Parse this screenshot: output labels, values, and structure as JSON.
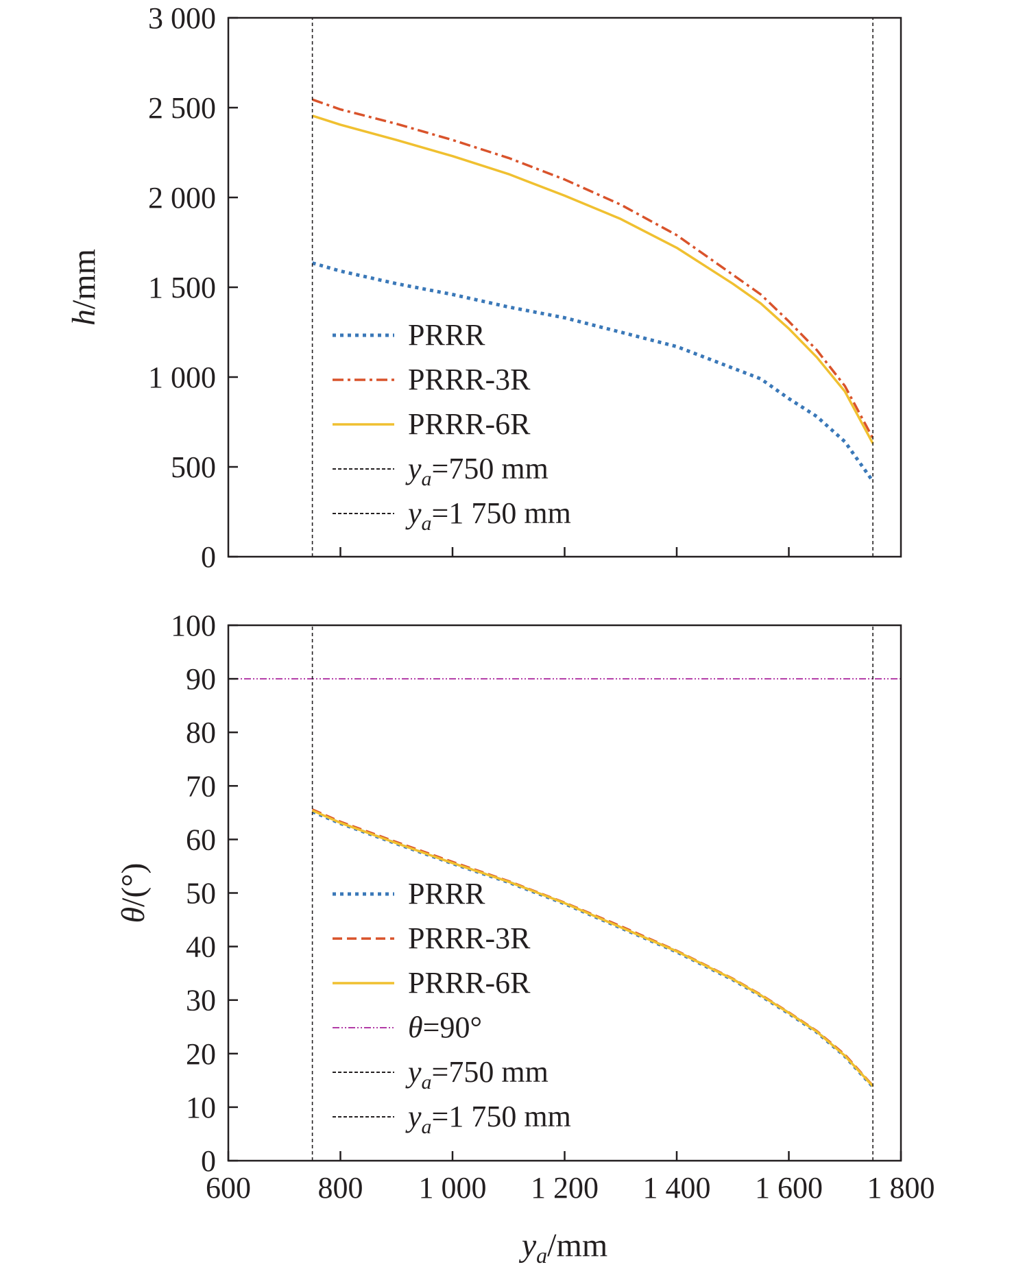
{
  "chart_data": [
    {
      "type": "line",
      "ylabel": {
        "var": "h",
        "unit": "/mm"
      },
      "xlim": [
        600,
        1800
      ],
      "ylim": [
        0,
        3000
      ],
      "yticks": [
        0,
        500,
        1000,
        1500,
        2000,
        2500,
        3000
      ],
      "ytick_labels": [
        "0",
        "500",
        "1 000",
        "1 500",
        "2 000",
        "2 500",
        "3 000"
      ],
      "xticks": [
        800,
        1000,
        1200,
        1400,
        1600
      ],
      "grid": false,
      "legend_position": "bottom-left",
      "series": [
        {
          "name": "PRRR",
          "style": "dotted",
          "color": "#3a78b8",
          "x": [
            750,
            800,
            900,
            1000,
            1100,
            1200,
            1300,
            1400,
            1500,
            1550,
            1600,
            1650,
            1700,
            1750
          ],
          "y": [
            1635,
            1590,
            1520,
            1460,
            1390,
            1330,
            1250,
            1170,
            1050,
            990,
            880,
            780,
            640,
            420
          ]
        },
        {
          "name": "PRRR-3R",
          "style": "dashdot",
          "color": "#d9532b",
          "x": [
            750,
            800,
            900,
            1000,
            1100,
            1200,
            1300,
            1400,
            1500,
            1550,
            1600,
            1650,
            1700,
            1750
          ],
          "y": [
            2545,
            2490,
            2410,
            2320,
            2220,
            2100,
            1960,
            1790,
            1570,
            1460,
            1310,
            1150,
            950,
            660
          ]
        },
        {
          "name": "PRRR-6R",
          "style": "solid",
          "color": "#f0c030",
          "x": [
            750,
            800,
            900,
            1000,
            1100,
            1200,
            1300,
            1400,
            1500,
            1550,
            1600,
            1650,
            1700,
            1750
          ],
          "y": [
            2455,
            2405,
            2320,
            2230,
            2130,
            2010,
            1880,
            1720,
            1520,
            1410,
            1270,
            1110,
            920,
            630
          ]
        },
        {
          "name": "=750 mm",
          "name_var": "y",
          "name_sub": "a",
          "style": "vline",
          "color": "#231f20",
          "x": [
            750,
            750
          ],
          "y": [
            0,
            3000
          ]
        },
        {
          "name": "=1 750 mm",
          "name_var": "y",
          "name_sub": "a",
          "style": "vline",
          "color": "#231f20",
          "x": [
            1750,
            1750
          ],
          "y": [
            0,
            3000
          ]
        }
      ]
    },
    {
      "type": "line",
      "ylabel": {
        "var": "θ",
        "unit": "/(°)"
      },
      "xlabel": {
        "var": "y",
        "sub": "a",
        "unit": "/mm"
      },
      "xlim": [
        600,
        1800
      ],
      "ylim": [
        0,
        100
      ],
      "yticks": [
        0,
        10,
        20,
        30,
        40,
        50,
        60,
        70,
        80,
        90,
        100
      ],
      "ytick_labels": [
        "0",
        "10",
        "20",
        "30",
        "40",
        "50",
        "60",
        "70",
        "80",
        "90",
        "100"
      ],
      "xticks": [
        600,
        800,
        1000,
        1200,
        1400,
        1600,
        1800
      ],
      "xtick_labels": [
        "600",
        "800",
        "1 000",
        "1 200",
        "1 400",
        "1 600",
        "1 800"
      ],
      "grid": false,
      "legend_position": "bottom-left",
      "series": [
        {
          "name": "PRRR",
          "style": "dotted",
          "color": "#3a78b8",
          "x": [
            750,
            800,
            900,
            1000,
            1100,
            1200,
            1300,
            1400,
            1500,
            1550,
            1600,
            1650,
            1700,
            1750
          ],
          "y": [
            65.2,
            63.0,
            59.2,
            55.5,
            52.0,
            48.0,
            43.5,
            39.0,
            33.8,
            30.8,
            27.5,
            24.0,
            19.5,
            13.8
          ]
        },
        {
          "name": "PRRR-3R",
          "style": "dashed",
          "color": "#d9532b",
          "x": [
            750,
            800,
            900,
            1000,
            1100,
            1200,
            1300,
            1400,
            1500,
            1550,
            1600,
            1650,
            1700,
            1750
          ],
          "y": [
            65.6,
            63.3,
            59.5,
            55.8,
            52.2,
            48.2,
            43.8,
            39.2,
            34.0,
            31.0,
            27.7,
            24.2,
            19.8,
            14.0
          ]
        },
        {
          "name": "PRRR-6R",
          "style": "solid",
          "color": "#f0c030",
          "x": [
            750,
            800,
            900,
            1000,
            1100,
            1200,
            1300,
            1400,
            1500,
            1550,
            1600,
            1650,
            1700,
            1750
          ],
          "y": [
            65.4,
            63.1,
            59.3,
            55.6,
            52.1,
            48.1,
            43.6,
            39.1,
            33.9,
            30.9,
            27.6,
            24.1,
            19.6,
            13.9
          ]
        },
        {
          "name": "=90°",
          "name_var": "θ",
          "style": "dashdotdot",
          "color": "#b23aa6",
          "x": [
            600,
            1800
          ],
          "y": [
            90,
            90
          ]
        },
        {
          "name": "=750 mm",
          "name_var": "y",
          "name_sub": "a",
          "style": "vline",
          "color": "#231f20",
          "x": [
            750,
            750
          ],
          "y": [
            0,
            100
          ]
        },
        {
          "name": "=1 750 mm",
          "name_var": "y",
          "name_sub": "a",
          "style": "vline",
          "color": "#231f20",
          "x": [
            1750,
            1750
          ],
          "y": [
            0,
            100
          ]
        }
      ]
    }
  ]
}
